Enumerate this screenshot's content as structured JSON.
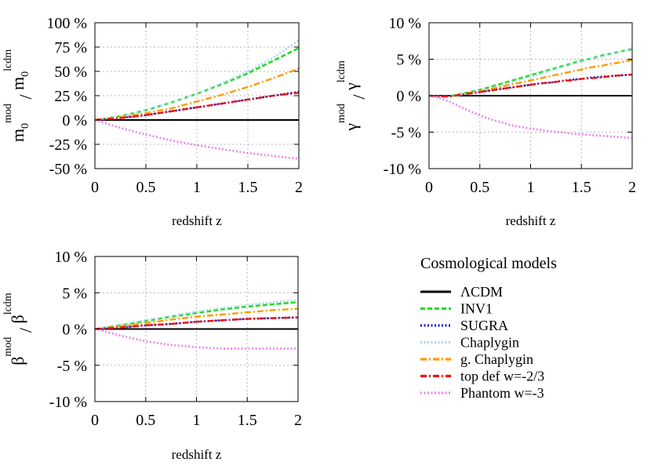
{
  "chart_data": [
    {
      "id": "m0",
      "type": "line",
      "xlabel": "redshift z",
      "ylabel": {
        "base": "m",
        "sub": "0",
        "sup": "mod",
        "sep": " / ",
        "base2": "m",
        "sub2": "0",
        "sup2": "lcdm"
      },
      "xlim": [
        0,
        2
      ],
      "ylim": [
        -50,
        100
      ],
      "xticks": [
        0,
        0.5,
        1,
        1.5,
        2
      ],
      "xtick_labels": [
        "0",
        "0.5",
        "1",
        "1.5",
        "2"
      ],
      "yticks": [
        -50,
        -25,
        0,
        25,
        50,
        75,
        100
      ],
      "ytick_labels": [
        "-50 %",
        "-25 %",
        "0 %",
        "25 %",
        "50 %",
        "75 %",
        "100 %"
      ],
      "grid": true,
      "x": [
        0,
        0.25,
        0.5,
        0.75,
        1,
        1.25,
        1.5,
        1.75,
        2
      ],
      "series": [
        {
          "name": "ΛCDM",
          "values": [
            0,
            0,
            0,
            0,
            0,
            0,
            0,
            0,
            0
          ]
        },
        {
          "name": "INV1",
          "values": [
            0,
            4,
            10,
            18,
            27,
            37,
            48,
            61,
            74
          ]
        },
        {
          "name": "SUGRA",
          "values": [
            0,
            2,
            5,
            9,
            13,
            17,
            21,
            25,
            29
          ]
        },
        {
          "name": "Chaplygin",
          "values": [
            0,
            4,
            10,
            18,
            27,
            38,
            50,
            64,
            82
          ]
        },
        {
          "name": "g. Chaplygin",
          "values": [
            0,
            3,
            7,
            12,
            19,
            26,
            34,
            43,
            53
          ]
        },
        {
          "name": "top def w=-2/3",
          "values": [
            0,
            2,
            5,
            9,
            13,
            17,
            21,
            25,
            28
          ]
        },
        {
          "name": "Phantom w=-3",
          "values": [
            0,
            -8,
            -15,
            -21,
            -26,
            -30,
            -34,
            -37,
            -40
          ]
        }
      ]
    },
    {
      "id": "gamma",
      "type": "line",
      "xlabel": "redshift z",
      "ylabel": {
        "base": "γ",
        "sub": "",
        "sup": "mod",
        "sep": " / ",
        "base2": "γ",
        "sub2": "",
        "sup2": "lcdm"
      },
      "xlim": [
        0,
        2
      ],
      "ylim": [
        -10,
        10
      ],
      "xticks": [
        0,
        0.5,
        1,
        1.5,
        2
      ],
      "xtick_labels": [
        "0",
        "0.5",
        "1",
        "1.5",
        "2"
      ],
      "yticks": [
        -10,
        -5,
        0,
        5,
        10
      ],
      "ytick_labels": [
        "-10 %",
        "-5 %",
        "0 %",
        "5 %",
        "10 %"
      ],
      "grid": true,
      "x": [
        0,
        0.1,
        0.2,
        0.3,
        0.4,
        0.5,
        0.6,
        0.7,
        0.8,
        0.9,
        1.0,
        1.1,
        1.2,
        1.3,
        1.4,
        1.5,
        1.6,
        1.7,
        1.8,
        1.9,
        2.0
      ],
      "series": [
        {
          "name": "ΛCDM",
          "values": [
            0,
            0,
            0,
            0,
            0,
            0,
            0,
            0,
            0,
            0,
            0,
            0,
            0,
            0,
            0,
            0,
            0,
            0,
            0,
            0,
            0
          ]
        },
        {
          "name": "INV1",
          "values": [
            0,
            -0.1,
            -0.1,
            0.2,
            0.5,
            0.8,
            1.2,
            1.6,
            2.0,
            2.4,
            2.8,
            3.2,
            3.6,
            4.0,
            4.4,
            4.8,
            5.1,
            5.5,
            5.8,
            6.1,
            6.4
          ]
        },
        {
          "name": "SUGRA",
          "values": [
            0,
            -0.1,
            -0.1,
            0.1,
            0.3,
            0.5,
            0.7,
            0.9,
            1.1,
            1.3,
            1.5,
            1.7,
            1.8,
            2.0,
            2.2,
            2.3,
            2.5,
            2.6,
            2.7,
            2.8,
            2.9
          ]
        },
        {
          "name": "Chaplygin",
          "values": [
            0,
            -0.2,
            -0.2,
            0.1,
            0.4,
            0.7,
            1.0,
            1.4,
            1.8,
            2.2,
            2.6,
            3.0,
            3.5,
            3.9,
            4.3,
            4.7,
            5.1,
            5.4,
            5.8,
            6.1,
            6.5
          ]
        },
        {
          "name": "g. Chaplygin",
          "values": [
            0,
            -0.1,
            -0.1,
            0.1,
            0.4,
            0.6,
            0.9,
            1.2,
            1.5,
            1.8,
            2.1,
            2.4,
            2.7,
            3.0,
            3.3,
            3.6,
            3.9,
            4.1,
            4.4,
            4.6,
            4.9
          ]
        },
        {
          "name": "top def w=-2/3",
          "values": [
            0,
            -0.1,
            -0.1,
            0.1,
            0.3,
            0.5,
            0.7,
            0.9,
            1.1,
            1.3,
            1.5,
            1.7,
            1.8,
            2.0,
            2.1,
            2.3,
            2.4,
            2.5,
            2.7,
            2.8,
            2.9
          ]
        },
        {
          "name": "Phantom w=-3",
          "values": [
            0,
            -0.3,
            -0.8,
            -1.5,
            -2.1,
            -2.7,
            -3.2,
            -3.6,
            -4.0,
            -4.3,
            -4.5,
            -4.7,
            -4.9,
            -5.0,
            -5.2,
            -5.3,
            -5.4,
            -5.5,
            -5.6,
            -5.7,
            -5.8
          ]
        }
      ]
    },
    {
      "id": "beta",
      "type": "line",
      "xlabel": "redshift z",
      "ylabel": {
        "base": "β",
        "sub": "",
        "sup": "mod",
        "sep": " / ",
        "base2": "β",
        "sub2": "",
        "sup2": "lcdm"
      },
      "xlim": [
        0,
        2
      ],
      "ylim": [
        -10,
        10
      ],
      "xticks": [
        0,
        0.5,
        1,
        1.5,
        2
      ],
      "xtick_labels": [
        "0",
        "0.5",
        "1",
        "1.5",
        "2"
      ],
      "yticks": [
        -10,
        -5,
        0,
        5,
        10
      ],
      "ytick_labels": [
        "-10 %",
        "-5 %",
        "0 %",
        "5 %",
        "10 %"
      ],
      "grid": true,
      "x": [
        0,
        0.25,
        0.5,
        0.75,
        1,
        1.25,
        1.5,
        1.75,
        2
      ],
      "series": [
        {
          "name": "ΛCDM",
          "values": [
            0,
            0,
            0,
            0,
            0,
            0,
            0,
            0,
            0
          ]
        },
        {
          "name": "INV1",
          "values": [
            0,
            0.5,
            1.1,
            1.7,
            2.2,
            2.7,
            3.1,
            3.4,
            3.7
          ]
        },
        {
          "name": "SUGRA",
          "values": [
            0,
            0.2,
            0.5,
            0.7,
            1.0,
            1.2,
            1.4,
            1.5,
            1.6
          ]
        },
        {
          "name": "Chaplygin",
          "values": [
            0,
            0.6,
            1.2,
            1.8,
            2.4,
            2.9,
            3.3,
            3.7,
            4.0
          ]
        },
        {
          "name": "g. Chaplygin",
          "values": [
            0,
            0.4,
            0.8,
            1.3,
            1.7,
            2.0,
            2.3,
            2.6,
            2.8
          ]
        },
        {
          "name": "top def w=-2/3",
          "values": [
            0,
            0.2,
            0.5,
            0.7,
            1.0,
            1.2,
            1.4,
            1.5,
            1.6
          ]
        },
        {
          "name": "Phantom w=-3",
          "values": [
            0,
            -0.9,
            -1.7,
            -2.2,
            -2.5,
            -2.7,
            -2.7,
            -2.7,
            -2.7
          ]
        }
      ]
    }
  ],
  "legend": {
    "title": "Cosmological models",
    "entries": [
      {
        "label": "ΛCDM",
        "color": "#000000",
        "dash": "solid"
      },
      {
        "label": "INV1",
        "color": "#22dd22",
        "dash": "dashed"
      },
      {
        "label": "SUGRA",
        "color": "#1a1acc",
        "dash": "dotted"
      },
      {
        "label": "Chaplygin",
        "color": "#a8d8ee",
        "dash": "dotted"
      },
      {
        "label": "g. Chaplygin",
        "color": "#ff9a00",
        "dash": "dashdot"
      },
      {
        "label": "top def w=-2/3",
        "color": "#ee1111",
        "dash": "dashdot"
      },
      {
        "label": "Phantom w=-3",
        "color": "#ee82ee",
        "dash": "dotted"
      }
    ]
  }
}
